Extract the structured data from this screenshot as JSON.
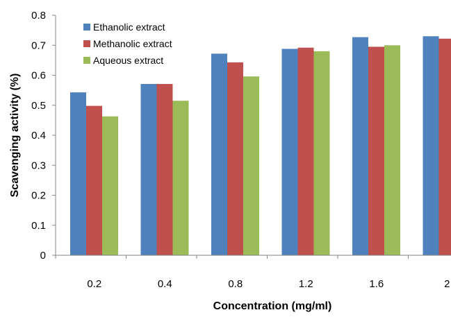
{
  "chart_data": {
    "type": "bar",
    "title": "",
    "xlabel": "Concentration (mg/ml)",
    "ylabel": "Scavenging activity (%)",
    "categories": [
      "0.2",
      "0.4",
      "0.8",
      "1.2",
      "1.6",
      "2"
    ],
    "ylim": [
      0,
      0.8
    ],
    "yticks": [
      "0",
      "0.1",
      "0.2",
      "0.3",
      "0.4",
      "0.5",
      "0.6",
      "0.7",
      "0.8"
    ],
    "grid": false,
    "legend_position": "top-left",
    "series": [
      {
        "name": "Ethanolic extract",
        "color": "#4F81BD",
        "values": [
          0.543,
          0.571,
          0.672,
          0.688,
          0.727,
          0.73
        ]
      },
      {
        "name": "Methanolic extract",
        "color": "#C0504D",
        "values": [
          0.498,
          0.571,
          0.643,
          0.692,
          0.695,
          0.722
        ]
      },
      {
        "name": "Aqueous extract",
        "color": "#9BBB59",
        "values": [
          0.463,
          0.515,
          0.596,
          0.68,
          0.7,
          null
        ]
      }
    ]
  }
}
